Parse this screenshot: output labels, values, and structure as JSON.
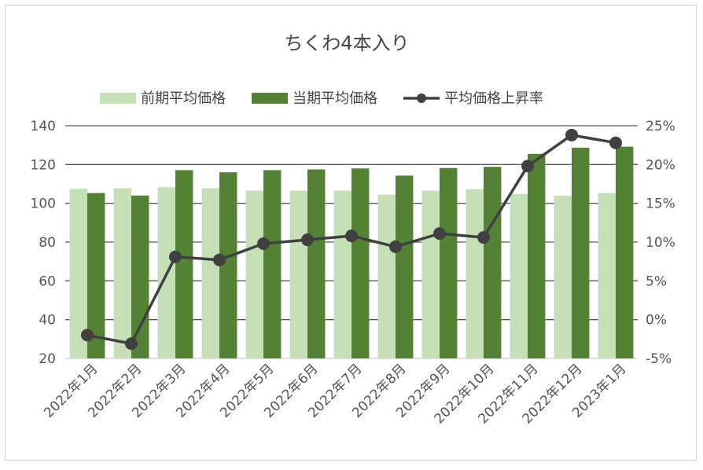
{
  "chart_data": {
    "type": "bar",
    "title": "ちくわ4本入り",
    "categories": [
      "2022年1月",
      "2022年2月",
      "2022年3月",
      "2022年4月",
      "2022年5月",
      "2022年6月",
      "2022年7月",
      "2022年8月",
      "2022年9月",
      "2022年10月",
      "2022年11月",
      "2022年12月",
      "2023年1月"
    ],
    "series": [
      {
        "name": "前期平均価格",
        "kind": "bar",
        "axis": "left",
        "color": "#c5e0b4",
        "values": [
          107.5,
          107.8,
          108.3,
          107.8,
          106.5,
          106.5,
          106.5,
          104.5,
          106.5,
          107.3,
          104.8,
          104.0,
          105.3
        ]
      },
      {
        "name": "当期平均価格",
        "kind": "bar",
        "axis": "left",
        "color": "#548235",
        "values": [
          105.3,
          104.0,
          117.1,
          116.0,
          117.1,
          117.5,
          118.0,
          114.3,
          118.2,
          118.8,
          125.5,
          128.7,
          129.2
        ]
      },
      {
        "name": "平均価格上昇率",
        "kind": "line",
        "axis": "right",
        "color": "#404040",
        "values": [
          -2.0,
          -3.1,
          8.1,
          7.7,
          9.8,
          10.3,
          10.8,
          9.4,
          11.1,
          10.6,
          19.8,
          23.8,
          22.8
        ]
      }
    ],
    "y_left": {
      "min": 20,
      "max": 140,
      "ticks": [
        "20",
        "40",
        "60",
        "80",
        "100",
        "120",
        "140"
      ]
    },
    "y_right": {
      "min": -5,
      "max": 25,
      "ticks": [
        "-5%",
        "0%",
        "5%",
        "10%",
        "15%",
        "20%",
        "25%"
      ]
    },
    "legend_position": "top",
    "grid": true
  }
}
